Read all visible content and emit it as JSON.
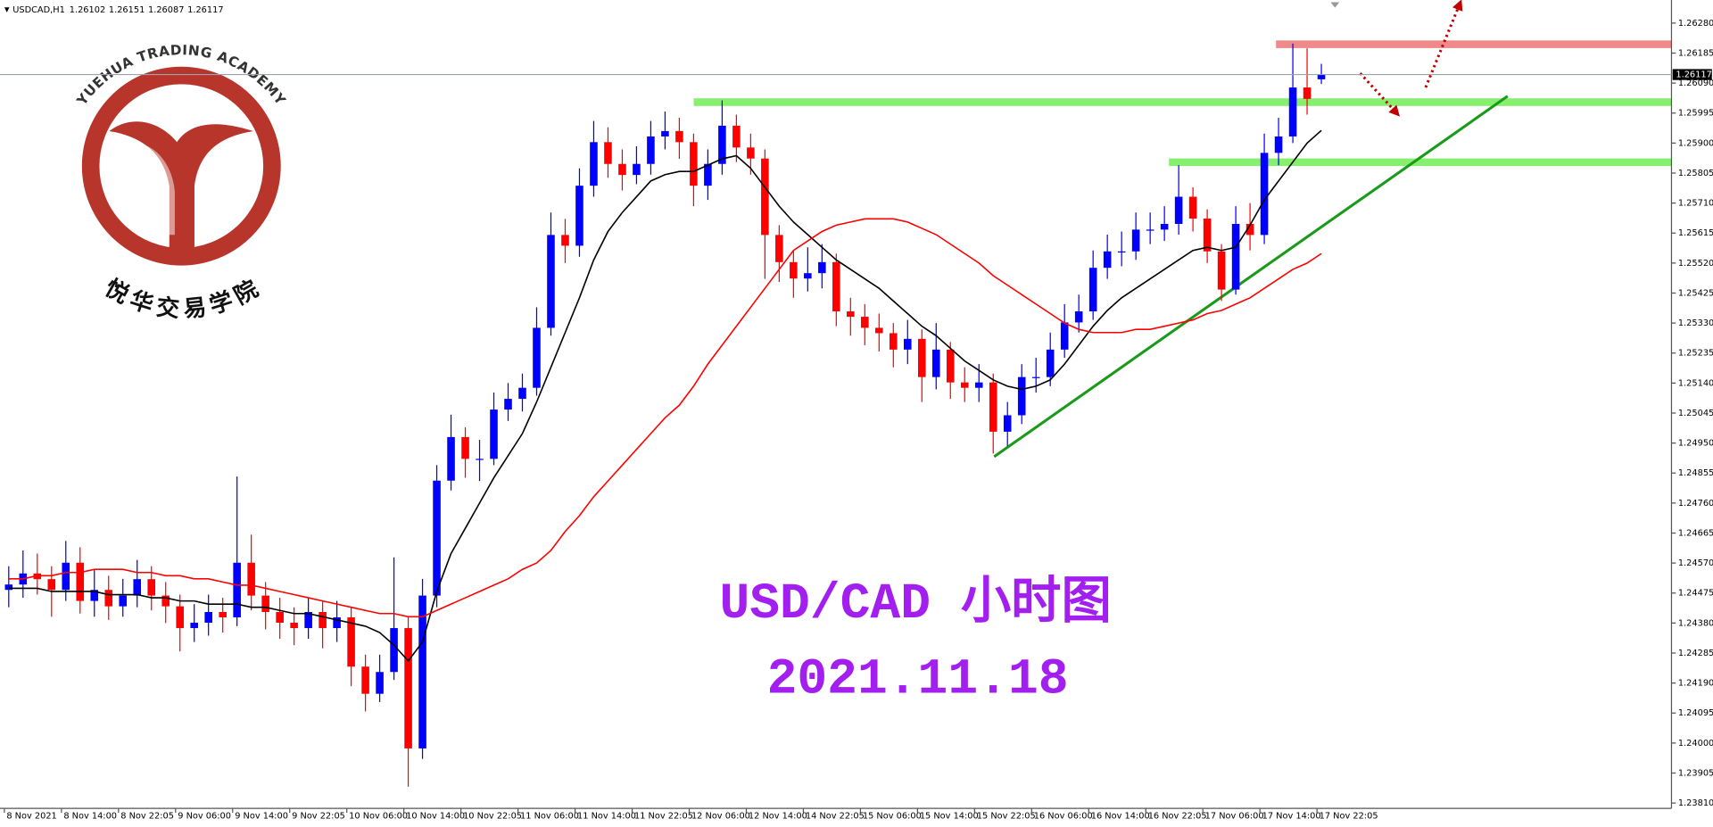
{
  "header": {
    "symbol": "USDCAD,H1"
  },
  "logo": {
    "text_en": "YUEHUA TRADING ACADEMY",
    "text_cn": "悦华交易学院"
  },
  "annotations": [
    "USD/CAD 小时图",
    "2021.11.18"
  ],
  "chart_data": {
    "type": "candlestick",
    "up_color": "#0000ff",
    "down_color": "#ff0000",
    "categories": [
      "8 Nov 2021",
      null,
      null,
      null,
      "8 Nov 14:00",
      null,
      null,
      null,
      "8 Nov 22:05",
      null,
      null,
      null,
      "9 Nov 06:00",
      null,
      null,
      null,
      "9 Nov 14:00",
      null,
      null,
      null,
      "9 Nov 22:05",
      null,
      null,
      null,
      "10 Nov 06:00",
      null,
      null,
      null,
      "10 Nov 14:00",
      null,
      null,
      null,
      "10 Nov 22:05",
      null,
      null,
      null,
      "11 Nov 06:00",
      null,
      null,
      null,
      "11 Nov 14:00",
      null,
      null,
      null,
      "11 Nov 22:05",
      null,
      null,
      null,
      "12 Nov 06:00",
      null,
      null,
      null,
      "12 Nov 14:00",
      null,
      null,
      null,
      "14 Nov 22:05",
      null,
      null,
      null,
      "15 Nov 06:00",
      null,
      null,
      null,
      "15 Nov 14:00",
      null,
      null,
      null,
      "15 Nov 22:05",
      null,
      null,
      null,
      "16 Nov 06:00",
      null,
      null,
      null,
      "16 Nov 14:00",
      null,
      null,
      null,
      "16 Nov 22:05",
      null,
      null,
      null,
      "17 Nov 06:00",
      null,
      null,
      null,
      "17 Nov 14:00",
      null,
      null,
      null,
      "17 Nov 22:05"
    ],
    "open": [
      1.24485,
      1.24502,
      1.24537,
      1.24519,
      1.24485,
      1.24571,
      1.2445,
      1.24485,
      1.24433,
      1.24467,
      1.24519,
      1.24467,
      1.24433,
      1.24364,
      1.24381,
      1.24415,
      1.24398,
      1.24571,
      1.24467,
      1.24415,
      1.24381,
      1.24364,
      1.24415,
      1.24364,
      1.24398,
      1.24242,
      1.24156,
      1.24225,
      1.24364,
      1.23983,
      1.24467,
      1.24831,
      1.24969,
      1.249,
      1.249,
      1.25056,
      1.2509,
      1.25125,
      1.25315,
      1.25609,
      1.25575,
      1.25765,
      1.25903,
      1.25834,
      1.25799,
      1.25834,
      1.25921,
      1.25938,
      1.25903,
      1.25765,
      1.25834,
      1.25955,
      1.25886,
      1.25851,
      1.25609,
      1.25523,
      1.25471,
      1.25488,
      1.25523,
      1.25367,
      1.2535,
      1.25315,
      1.25298,
      1.25246,
      1.2528,
      1.25159,
      1.25246,
      1.25142,
      1.25125,
      1.25142,
      1.24986,
      1.25038,
      1.25159,
      1.25159,
      1.25246,
      1.25332,
      1.25367,
      1.25505,
      1.25557,
      1.25557,
      1.25626,
      1.25626,
      1.25644,
      1.2573,
      1.25661,
      1.25557,
      1.25436,
      1.25644,
      1.25609,
      1.25869,
      1.25921,
      1.26076,
      1.26102
    ],
    "high": [
      1.2456,
      1.2461,
      1.246,
      1.2456,
      1.2464,
      1.2462,
      1.2455,
      1.2453,
      1.2452,
      1.2458,
      1.2456,
      1.2451,
      1.2447,
      1.2444,
      1.2447,
      1.2446,
      1.24844,
      1.2466,
      1.2451,
      1.2446,
      1.2443,
      1.2446,
      1.2445,
      1.2445,
      1.2443,
      1.2428,
      1.2428,
      1.24588,
      1.244,
      1.2452,
      1.2488,
      1.2504,
      1.25,
      1.2496,
      1.2511,
      1.2514,
      1.2517,
      1.2538,
      1.2568,
      1.2566,
      1.2582,
      1.2597,
      1.2595,
      1.2588,
      1.2589,
      1.2597,
      1.26,
      1.2598,
      1.2593,
      1.2588,
      1.26035,
      1.2599,
      1.2593,
      1.2588,
      1.2564,
      1.2556,
      1.2557,
      1.2558,
      1.2555,
      1.2541,
      1.2539,
      1.2536,
      1.2533,
      1.2534,
      1.2531,
      1.2533,
      1.2527,
      1.2519,
      1.252,
      1.2517,
      1.2508,
      1.252,
      1.2522,
      1.253,
      1.2539,
      1.2542,
      1.2556,
      1.2561,
      1.2562,
      1.2568,
      1.2568,
      1.257,
      1.2583,
      1.2576,
      1.2569,
      1.2558,
      1.257,
      1.2571,
      1.2593,
      1.2598,
      1.26215,
      1.262,
      1.26151
    ],
    "low": [
      1.2443,
      1.2446,
      1.2447,
      1.244,
      1.2445,
      1.2441,
      1.244,
      1.2439,
      1.244,
      1.2443,
      1.2442,
      1.2438,
      1.2429,
      1.2432,
      1.2434,
      1.2435,
      1.2437,
      1.2442,
      1.2436,
      1.2433,
      1.2431,
      1.2433,
      1.243,
      1.2432,
      1.2418,
      1.241,
      1.2413,
      1.242,
      1.23862,
      1.2395,
      1.2443,
      1.248,
      1.2484,
      1.2483,
      1.2488,
      1.2502,
      1.2505,
      1.251,
      1.2529,
      1.2552,
      1.2554,
      1.2573,
      1.2579,
      1.2575,
      1.2577,
      1.258,
      1.2588,
      1.2585,
      1.257,
      1.2572,
      1.258,
      1.2584,
      1.258,
      1.2547,
      1.2546,
      1.2541,
      1.2543,
      1.2544,
      1.2532,
      1.2529,
      1.2526,
      1.2524,
      1.2519,
      1.252,
      1.2508,
      1.2512,
      1.2509,
      1.2508,
      1.2508,
      1.24917,
      1.2494,
      1.2501,
      1.2511,
      1.2513,
      1.2522,
      1.253,
      1.2534,
      1.2547,
      1.2551,
      1.2553,
      1.2558,
      1.2559,
      1.2561,
      1.2562,
      1.2552,
      1.254,
      1.2542,
      1.2556,
      1.2558,
      1.2583,
      1.259,
      1.2599,
      1.26087
    ],
    "close": [
      1.24502,
      1.24537,
      1.24519,
      1.24485,
      1.24571,
      1.2445,
      1.24485,
      1.24433,
      1.24467,
      1.24519,
      1.24467,
      1.24433,
      1.24364,
      1.24381,
      1.24415,
      1.24398,
      1.24571,
      1.24467,
      1.24415,
      1.24381,
      1.24364,
      1.24415,
      1.24364,
      1.24398,
      1.24242,
      1.24156,
      1.24225,
      1.24364,
      1.23983,
      1.24467,
      1.24831,
      1.24969,
      1.249,
      1.249,
      1.25056,
      1.2509,
      1.25125,
      1.25315,
      1.25609,
      1.25575,
      1.25765,
      1.25903,
      1.25834,
      1.25799,
      1.25834,
      1.25921,
      1.25938,
      1.25903,
      1.25765,
      1.25834,
      1.25955,
      1.25886,
      1.25851,
      1.25609,
      1.25523,
      1.25471,
      1.25488,
      1.25523,
      1.25367,
      1.2535,
      1.25315,
      1.25298,
      1.25246,
      1.2528,
      1.25159,
      1.25246,
      1.25142,
      1.25125,
      1.25142,
      1.24986,
      1.25038,
      1.25159,
      1.25159,
      1.25246,
      1.25332,
      1.25367,
      1.25505,
      1.25557,
      1.25557,
      1.25626,
      1.25626,
      1.25644,
      1.2573,
      1.25661,
      1.25557,
      1.25436,
      1.25644,
      1.25609,
      1.25869,
      1.25921,
      1.26076,
      1.2604,
      1.26117
    ],
    "lines": [
      {
        "color": "#000000",
        "values": [
          1.2449,
          1.2449,
          1.2449,
          1.2448,
          1.2448,
          1.2448,
          1.2448,
          1.2447,
          1.2447,
          1.2447,
          1.2446,
          1.2446,
          1.2445,
          1.2445,
          1.2444,
          1.2444,
          1.2444,
          1.2443,
          1.2443,
          1.2442,
          1.2441,
          1.2441,
          1.244,
          1.2439,
          1.2438,
          1.2437,
          1.2435,
          1.2431,
          1.2426,
          1.2432,
          1.2448,
          1.246,
          1.2468,
          1.2476,
          1.2484,
          1.2491,
          1.2498,
          1.2508,
          1.2519,
          1.253,
          1.2541,
          1.2553,
          1.2562,
          1.2568,
          1.2573,
          1.2578,
          1.258,
          1.2581,
          1.2581,
          1.2583,
          1.2585,
          1.2586,
          1.2582,
          1.2576,
          1.257,
          1.2565,
          1.2561,
          1.2557,
          1.2553,
          1.255,
          1.2547,
          1.2544,
          1.254,
          1.2536,
          1.2532,
          1.2529,
          1.2525,
          1.2521,
          1.2518,
          1.2515,
          1.2513,
          1.2512,
          1.2513,
          1.2515,
          1.252,
          1.2526,
          1.2532,
          1.2537,
          1.2541,
          1.2544,
          1.2547,
          1.255,
          1.2553,
          1.2556,
          1.2557,
          1.2556,
          1.2557,
          1.2564,
          1.2572,
          1.2578,
          1.2584,
          1.259,
          1.2594
        ]
      },
      {
        "color": "#ff0000",
        "values": [
          1.2452,
          1.2452,
          1.2453,
          1.2453,
          1.2454,
          1.2454,
          1.2455,
          1.2455,
          1.2455,
          1.2454,
          1.2454,
          1.2453,
          1.2453,
          1.2452,
          1.2452,
          1.2451,
          1.245,
          1.245,
          1.2449,
          1.2448,
          1.2447,
          1.2446,
          1.2445,
          1.2444,
          1.2443,
          1.2442,
          1.2441,
          1.2441,
          1.244,
          1.244,
          1.2442,
          1.2444,
          1.2446,
          1.2448,
          1.245,
          1.2452,
          1.2455,
          1.2457,
          1.2461,
          1.2467,
          1.2472,
          1.2478,
          1.2483,
          1.2488,
          1.2493,
          1.2498,
          1.2503,
          1.2507,
          1.2513,
          1.252,
          1.2526,
          1.2532,
          1.2538,
          1.2544,
          1.255,
          1.2556,
          1.2559,
          1.2562,
          1.2564,
          1.2565,
          1.2566,
          1.2566,
          1.2566,
          1.2565,
          1.2563,
          1.2561,
          1.2558,
          1.2555,
          1.2552,
          1.2548,
          1.2545,
          1.2542,
          1.2539,
          1.2536,
          1.2533,
          1.2531,
          1.253,
          1.253,
          1.253,
          1.2531,
          1.2531,
          1.2532,
          1.2533,
          1.2534,
          1.2536,
          1.2537,
          1.2539,
          1.2541,
          1.2544,
          1.2547,
          1.255,
          1.2552,
          1.2555
        ]
      }
    ],
    "ylim": [
      1.23793,
      1.26353
    ],
    "yticks": [
      {
        "value": 1.2628,
        "label": "1.26280"
      },
      {
        "value": 1.26185,
        "label": "1.26185"
      },
      {
        "value": 1.2609,
        "label": "1.26090"
      },
      {
        "value": 1.25995,
        "label": "1.25995"
      },
      {
        "value": 1.259,
        "label": "1.25900"
      },
      {
        "value": 1.25805,
        "label": "1.25805"
      },
      {
        "value": 1.2571,
        "label": "1.25710"
      },
      {
        "value": 1.25615,
        "label": "1.25615"
      },
      {
        "value": 1.2552,
        "label": "1.25520"
      },
      {
        "value": 1.25425,
        "label": "1.25425"
      },
      {
        "value": 1.2533,
        "label": "1.25330"
      },
      {
        "value": 1.25235,
        "label": "1.25235"
      },
      {
        "value": 1.2514,
        "label": "1.25140"
      },
      {
        "value": 1.25045,
        "label": "1.25045"
      },
      {
        "value": 1.2495,
        "label": "1.24950"
      },
      {
        "value": 1.24855,
        "label": "1.24855"
      },
      {
        "value": 1.2476,
        "label": "1.24760"
      },
      {
        "value": 1.24665,
        "label": "1.24665"
      },
      {
        "value": 1.2457,
        "label": "1.24570"
      },
      {
        "value": 1.24475,
        "label": "1.24475"
      },
      {
        "value": 1.2438,
        "label": "1.24380"
      },
      {
        "value": 1.24285,
        "label": "1.24285"
      },
      {
        "value": 1.2419,
        "label": "1.24190"
      },
      {
        "value": 1.24095,
        "label": "1.24095"
      },
      {
        "value": 1.24,
        "label": "1.24000"
      },
      {
        "value": 1.23905,
        "label": "1.23905"
      },
      {
        "value": 1.2381,
        "label": "1.23810"
      }
    ]
  }
}
